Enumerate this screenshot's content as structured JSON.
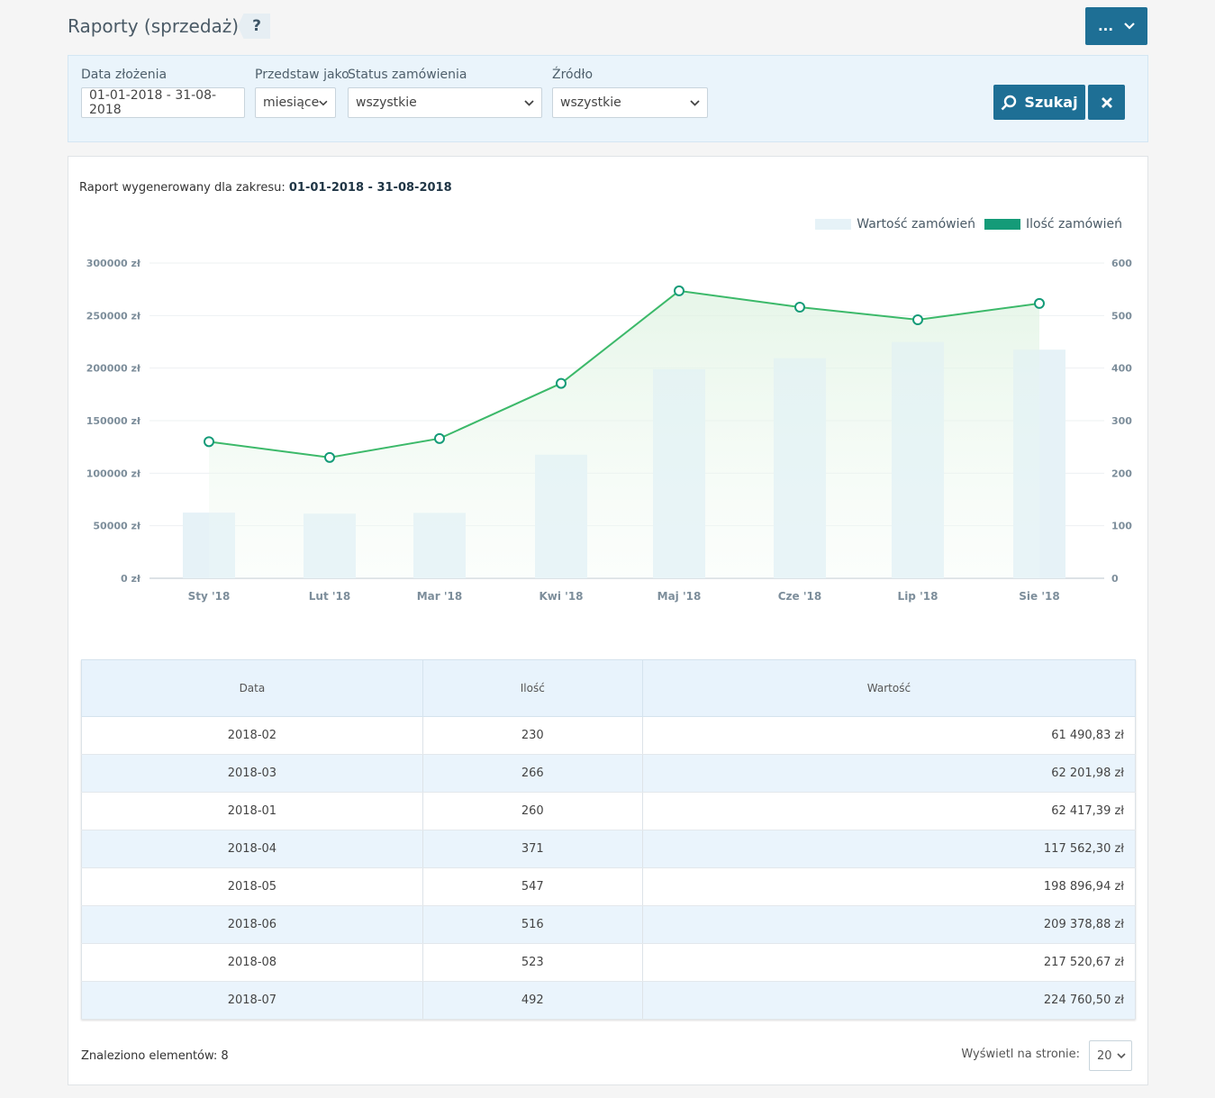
{
  "header": {
    "title": "Raporty (sprzedaż)",
    "help_label": "?",
    "more_label": "..."
  },
  "filters": {
    "date_label": "Data złożenia",
    "date_value": "01-01-2018 - 31-08-2018",
    "group_label": "Przedstaw jako",
    "group_value": "miesiące",
    "status_label": "Status zamówienia",
    "status_value": "wszystkie",
    "source_label": "Źródło",
    "source_value": "wszystkie",
    "search_label": "Szukaj"
  },
  "report": {
    "range_prefix": "Raport wygenerowany dla zakresu: ",
    "range_start": "01-01-2018",
    "range_sep": " - ",
    "range_end": "31-08-2018"
  },
  "chart_data": {
    "type": "bar",
    "categories": [
      "Sty '18",
      "Lut '18",
      "Mar '18",
      "Kwi '18",
      "Maj '18",
      "Cze '18",
      "Lip '18",
      "Sie '18"
    ],
    "series": [
      {
        "name": "Wartość zamówień",
        "type": "bar",
        "axis": "left",
        "color": "#e6f2f7",
        "values": [
          62417.39,
          61490.83,
          62201.98,
          117562.3,
          198896.94,
          209378.88,
          224760.5,
          217520.67
        ]
      },
      {
        "name": "Ilość zamówień",
        "type": "line",
        "axis": "right",
        "color": "#3cb96a",
        "values": [
          260,
          230,
          266,
          371,
          547,
          516,
          492,
          523
        ]
      }
    ],
    "y_left": {
      "min": 0,
      "max": 300000,
      "ticks": [
        "0 zł",
        "50000 zł",
        "100000 zł",
        "150000 zł",
        "200000 zł",
        "250000 zł",
        "300000 zł"
      ]
    },
    "y_right": {
      "min": 0,
      "max": 600,
      "ticks": [
        "0",
        "100",
        "200",
        "300",
        "400",
        "500",
        "600"
      ]
    },
    "grid": true,
    "legend_position": "top-right",
    "legend_colors": [
      "#e6f2f7",
      "#149b78"
    ]
  },
  "table": {
    "headers": [
      "Data",
      "Ilość",
      "Wartość"
    ],
    "rows": [
      [
        "2018-02",
        "230",
        "61 490,83 zł"
      ],
      [
        "2018-03",
        "266",
        "62 201,98 zł"
      ],
      [
        "2018-01",
        "260",
        "62 417,39 zł"
      ],
      [
        "2018-04",
        "371",
        "117 562,30 zł"
      ],
      [
        "2018-05",
        "547",
        "198 896,94 zł"
      ],
      [
        "2018-06",
        "516",
        "209 378,88 zł"
      ],
      [
        "2018-08",
        "523",
        "217 520,67 zł"
      ],
      [
        "2018-07",
        "492",
        "224 760,50 zł"
      ]
    ]
  },
  "footer": {
    "found_text": "Znaleziono elementów: 8",
    "per_page_label": "Wyświetl na stronie:",
    "per_page_value": "20"
  }
}
